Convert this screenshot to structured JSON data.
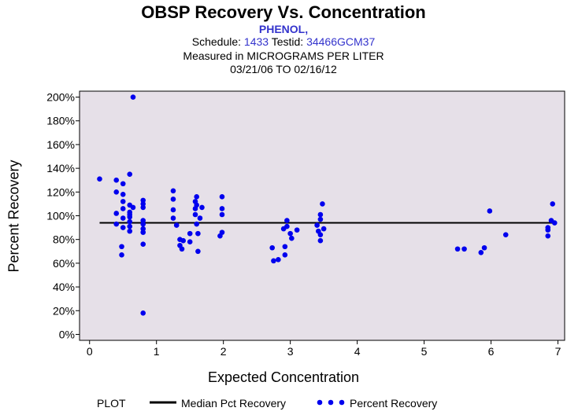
{
  "header": {
    "title": "OBSP Recovery Vs. Concentration",
    "compound": "PHENOL,",
    "schedule_label": "Schedule:",
    "schedule_value": "1433",
    "testid_label": "Testid:",
    "testid_value": "34466GCM37",
    "measured_label": "Measured in",
    "measured_units": "MICROGRAMS PER LITER",
    "date_range": "03/21/06 TO 02/16/12"
  },
  "legend": {
    "plot_label": "PLOT",
    "median_label": "Median Pct Recovery",
    "points_label": "Percent Recovery"
  },
  "colors": {
    "plot_background": "#e6e0e8",
    "point_color": "#0000ee",
    "median_line": "#000000",
    "accent_text": "#3333cc"
  },
  "chart_data": {
    "type": "scatter",
    "title": "OBSP Recovery Vs. Concentration",
    "xlabel": "Expected Concentration",
    "ylabel": "Percent Recovery",
    "xlim": [
      -0.15,
      7.1
    ],
    "ylim": [
      -5,
      205
    ],
    "xticks": [
      0,
      1,
      2,
      3,
      4,
      5,
      6,
      7
    ],
    "yticks": [
      0,
      20,
      40,
      60,
      80,
      100,
      120,
      140,
      160,
      180,
      200
    ],
    "ytick_labels": [
      "0%",
      "20%",
      "40%",
      "60%",
      "80%",
      "100%",
      "120%",
      "140%",
      "160%",
      "180%",
      "200%"
    ],
    "median_recovery": 94,
    "series": [
      {
        "name": "Percent Recovery",
        "points": [
          [
            0.15,
            131
          ],
          [
            0.4,
            130
          ],
          [
            0.4,
            120
          ],
          [
            0.4,
            102
          ],
          [
            0.4,
            93
          ],
          [
            0.5,
            127
          ],
          [
            0.5,
            118
          ],
          [
            0.5,
            112
          ],
          [
            0.5,
            106
          ],
          [
            0.5,
            98
          ],
          [
            0.5,
            90
          ],
          [
            0.48,
            74
          ],
          [
            0.48,
            67
          ],
          [
            0.6,
            135
          ],
          [
            0.6,
            109
          ],
          [
            0.6,
            103
          ],
          [
            0.6,
            101
          ],
          [
            0.6,
            99
          ],
          [
            0.6,
            95
          ],
          [
            0.6,
            91
          ],
          [
            0.6,
            87
          ],
          [
            0.65,
            200
          ],
          [
            0.65,
            107
          ],
          [
            0.8,
            113
          ],
          [
            0.8,
            110
          ],
          [
            0.8,
            107
          ],
          [
            0.8,
            96
          ],
          [
            0.8,
            93
          ],
          [
            0.8,
            89
          ],
          [
            0.8,
            86
          ],
          [
            0.8,
            76
          ],
          [
            0.8,
            18
          ],
          [
            1.25,
            121
          ],
          [
            1.25,
            114
          ],
          [
            1.25,
            105
          ],
          [
            1.25,
            98
          ],
          [
            1.3,
            92
          ],
          [
            1.35,
            80
          ],
          [
            1.35,
            75
          ],
          [
            1.38,
            72
          ],
          [
            1.4,
            79
          ],
          [
            1.5,
            85
          ],
          [
            1.5,
            78
          ],
          [
            1.58,
            112
          ],
          [
            1.58,
            106
          ],
          [
            1.58,
            101
          ],
          [
            1.6,
            116
          ],
          [
            1.6,
            109
          ],
          [
            1.6,
            93
          ],
          [
            1.62,
            85
          ],
          [
            1.62,
            70
          ],
          [
            1.65,
            98
          ],
          [
            1.68,
            107
          ],
          [
            1.95,
            83
          ],
          [
            1.98,
            116
          ],
          [
            1.98,
            106
          ],
          [
            1.98,
            101
          ],
          [
            1.98,
            86
          ],
          [
            2.73,
            73
          ],
          [
            2.75,
            62
          ],
          [
            2.82,
            63
          ],
          [
            2.9,
            89
          ],
          [
            2.92,
            67
          ],
          [
            2.92,
            74
          ],
          [
            2.95,
            96
          ],
          [
            2.95,
            91
          ],
          [
            3.0,
            85
          ],
          [
            3.02,
            81
          ],
          [
            3.1,
            88
          ],
          [
            3.4,
            92
          ],
          [
            3.42,
            87
          ],
          [
            3.45,
            101
          ],
          [
            3.45,
            97
          ],
          [
            3.45,
            84
          ],
          [
            3.45,
            79
          ],
          [
            3.48,
            110
          ],
          [
            3.5,
            89
          ],
          [
            5.5,
            72
          ],
          [
            5.6,
            72
          ],
          [
            5.85,
            69
          ],
          [
            5.9,
            73
          ],
          [
            5.98,
            104
          ],
          [
            6.22,
            84
          ],
          [
            6.85,
            90
          ],
          [
            6.85,
            88
          ],
          [
            6.85,
            83
          ],
          [
            6.9,
            96
          ],
          [
            6.92,
            110
          ],
          [
            6.95,
            94
          ]
        ]
      }
    ]
  }
}
